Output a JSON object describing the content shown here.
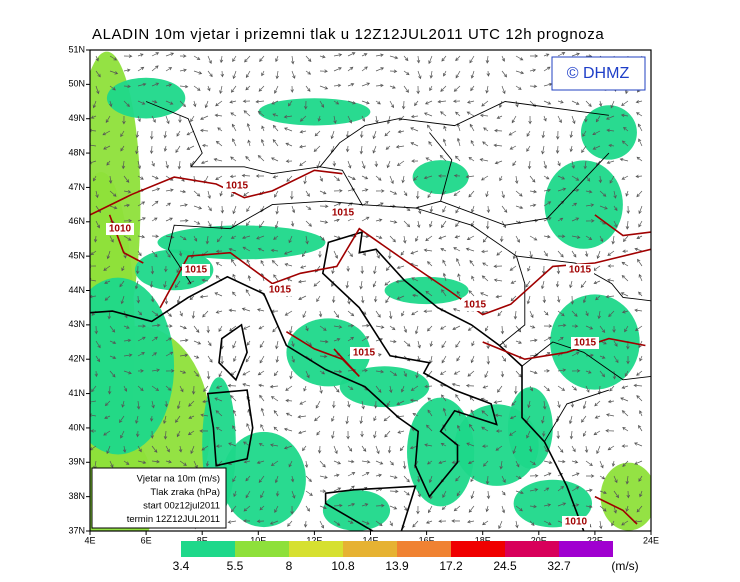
{
  "header": {
    "title": "ALADIN 10m vjetar i prizemni tlak u 12Z12JUL2011 UTC 12h prognoza"
  },
  "copyright": "© DHMZ",
  "lat_labels": [
    "51N",
    "50N",
    "49N",
    "48N",
    "47N",
    "46N",
    "45N",
    "44N",
    "43N",
    "42N",
    "41N",
    "40N",
    "39N",
    "38N",
    "37N"
  ],
  "lon_labels": [
    "4E",
    "6E",
    "8E",
    "10E",
    "12E",
    "14E",
    "16E",
    "18E",
    "20E",
    "22E",
    "24E"
  ],
  "info_box": [
    "Vjetar na 10m (m/s)",
    "Tlak zraka (hPa)",
    "start 00z12jul2011",
    "termin 12Z12JUL2011"
  ],
  "colorbar": {
    "labels": [
      "3.4",
      "5.5",
      "8",
      "10.8",
      "13.9",
      "17.2",
      "24.5",
      "32.7"
    ],
    "unit": "(m/s)",
    "colors": [
      "#1ed88a",
      "#8ee03a",
      "#d6e030",
      "#e6b232",
      "#f08232",
      "#f00000",
      "#d8005a",
      "#a000d0"
    ]
  },
  "isobar_labels": [
    "1015",
    "1010",
    "1015",
    "1015",
    "1015",
    "1015",
    "1015",
    "1015",
    "1015",
    "1010"
  ]
}
